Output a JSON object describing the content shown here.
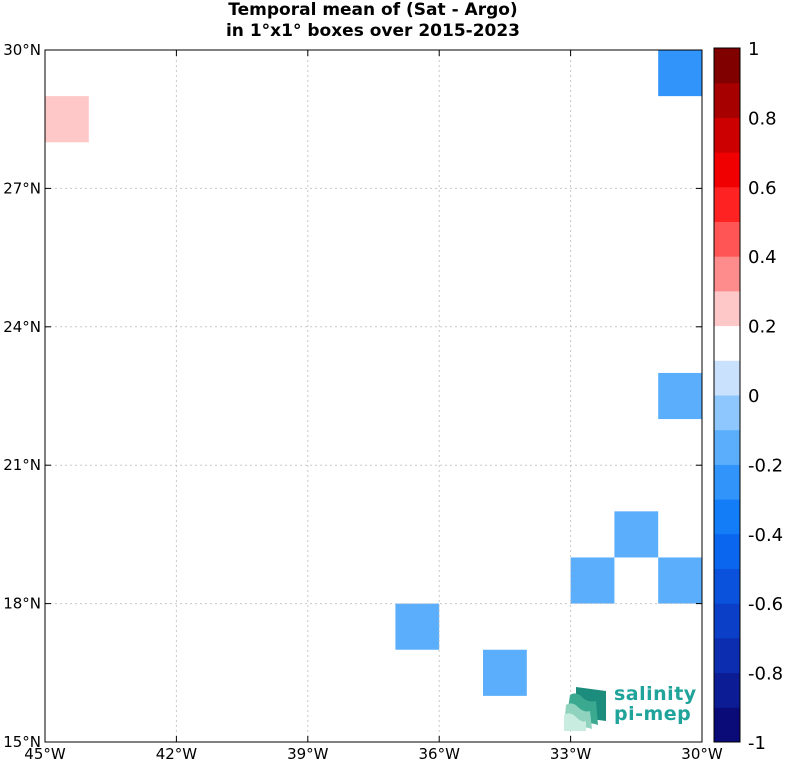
{
  "chart_data": {
    "type": "heatmap",
    "title_lines": [
      "Temporal mean of (Sat - Argo)",
      "in 1°x1° boxes over 2015-2023"
    ],
    "xlim": [
      -45,
      -30
    ],
    "ylim": [
      15,
      30
    ],
    "grid": true,
    "x_ticks": [
      {
        "value": -45,
        "label": "45°W"
      },
      {
        "value": -42,
        "label": "42°W"
      },
      {
        "value": -39,
        "label": "39°W"
      },
      {
        "value": -36,
        "label": "36°W"
      },
      {
        "value": -33,
        "label": "33°W"
      },
      {
        "value": -30,
        "label": "30°W"
      }
    ],
    "y_ticks": [
      {
        "value": 15,
        "label": "15°N"
      },
      {
        "value": 18,
        "label": "18°N"
      },
      {
        "value": 21,
        "label": "21°N"
      },
      {
        "value": 24,
        "label": "24°N"
      },
      {
        "value": 27,
        "label": "27°N"
      },
      {
        "value": 30,
        "label": "30°N"
      }
    ],
    "cells": [
      {
        "lon": -45,
        "lat": 28,
        "value": 0.25
      },
      {
        "lon": -42,
        "lat": 29,
        "value": 0.15
      },
      {
        "lon": -40,
        "lat": 29,
        "value": 0.15
      },
      {
        "lon": -44,
        "lat": 26,
        "value": 0.15
      },
      {
        "lon": -42,
        "lat": 24,
        "value": 0.15
      },
      {
        "lon": -31,
        "lat": 29,
        "value": -0.25
      },
      {
        "lon": -31,
        "lat": 22,
        "value": -0.15
      },
      {
        "lon": -32,
        "lat": 19,
        "value": -0.15
      },
      {
        "lon": -33,
        "lat": 18,
        "value": -0.15
      },
      {
        "lon": -31,
        "lat": 18,
        "value": -0.15
      },
      {
        "lon": -37,
        "lat": 17,
        "value": -0.15
      },
      {
        "lon": -35,
        "lat": 16,
        "value": -0.15
      }
    ],
    "colorbar": {
      "range": [
        -1,
        1
      ],
      "levels": 20,
      "colors": [
        "#0a0a78",
        "#0b1c94",
        "#0c2db0",
        "#0b3fc8",
        "#0a52dc",
        "#0a66ee",
        "#137df8",
        "#3094fb",
        "#5aaefc",
        "#8dc7fd",
        "#c9e1fd",
        "#ffffff",
        "#ffc8c8",
        "#ff8c8c",
        "#ff5555",
        "#ff2222",
        "#f00000",
        "#cc0000",
        "#a60000",
        "#800000"
      ],
      "ticks": [
        {
          "value": 1,
          "label": "1"
        },
        {
          "value": 0.8,
          "label": "0.8"
        },
        {
          "value": 0.6,
          "label": "0.6"
        },
        {
          "value": 0.4,
          "label": "0.4"
        },
        {
          "value": 0.2,
          "label": "0.2"
        },
        {
          "value": 0,
          "label": "0"
        },
        {
          "value": -0.2,
          "label": "-0.2"
        },
        {
          "value": -0.4,
          "label": "-0.4"
        },
        {
          "value": -0.6,
          "label": "-0.6"
        },
        {
          "value": -0.8,
          "label": "-0.8"
        },
        {
          "value": -1,
          "label": "-1"
        }
      ]
    }
  },
  "logo": {
    "line1": "salinity",
    "line2": "pi-mep",
    "accent": "#1fa39a"
  }
}
